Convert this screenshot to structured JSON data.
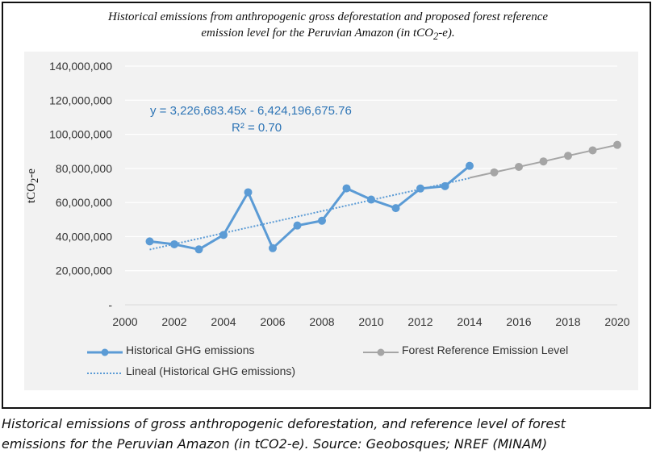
{
  "chart_data": {
    "type": "line",
    "title_line1": "Historical emissions from anthropogenic gross deforestation and proposed forest reference",
    "title_line2_prefix": "emission level for the Peruvian Amazon (in tCO",
    "title_line2_sub": "2",
    "title_line2_suffix": "-e).",
    "ylabel_main": "tCO",
    "ylabel_sub": "2",
    "ylabel_suffix": "-e",
    "xlim": [
      2000,
      2020
    ],
    "ylim": [
      0,
      140000000
    ],
    "x_ticks": [
      "2000",
      "2002",
      "2004",
      "2006",
      "2008",
      "2010",
      "2012",
      "2014",
      "2016",
      "2018",
      "2020"
    ],
    "y_ticks": [
      {
        "value": 0,
        "label": "-"
      },
      {
        "value": 20000000,
        "label": "20,000,000"
      },
      {
        "value": 40000000,
        "label": "40,000,000"
      },
      {
        "value": 60000000,
        "label": "60,000,000"
      },
      {
        "value": 80000000,
        "label": "80,000,000"
      },
      {
        "value": 100000000,
        "label": "100,000,000"
      },
      {
        "value": 120000000,
        "label": "120,000,000"
      },
      {
        "value": 140000000,
        "label": "140,000,000"
      }
    ],
    "grid": true,
    "series": [
      {
        "name": "Historical GHG emissions",
        "color": "#5b9bd5",
        "x": [
          2001,
          2002,
          2003,
          2004,
          2005,
          2006,
          2007,
          2008,
          2009,
          2010,
          2011,
          2012,
          2013,
          2014
        ],
        "y": [
          37200000,
          35500000,
          32500000,
          41000000,
          66000000,
          33200000,
          46500000,
          49300000,
          68300000,
          61700000,
          56700000,
          68200000,
          69600000,
          81500000
        ]
      },
      {
        "name": "Forest Reference Emission Level",
        "color": "#a5a5a5",
        "x": [
          2014,
          2015,
          2016,
          2017,
          2018,
          2019,
          2020
        ],
        "y": [
          74500000,
          77700000,
          80900000,
          84100000,
          87400000,
          90600000,
          93800000
        ]
      }
    ],
    "trendline": {
      "name": "Lineal (Historical GHG emissions)",
      "color": "#5b9bd5",
      "x": [
        2001,
        2014
      ],
      "y": [
        32400000,
        74300000
      ]
    },
    "equation_line1": "y = 3,226,683.45x - 6,424,196,675.76",
    "equation_line2": "R² = 0.70",
    "legend": {
      "hist_label": "Historical GHG emissions",
      "fref_label": "Forest Reference Emission Level",
      "trend_label": "Lineal (Historical GHG emissions)"
    }
  },
  "caption": {
    "line1": "Historical emissions of gross anthropogenic deforestation, and reference level of forest",
    "line2": "emissions for the Peruvian Amazon (in tCO2-e). Source: Geobosques; NREF (MINAM)"
  }
}
